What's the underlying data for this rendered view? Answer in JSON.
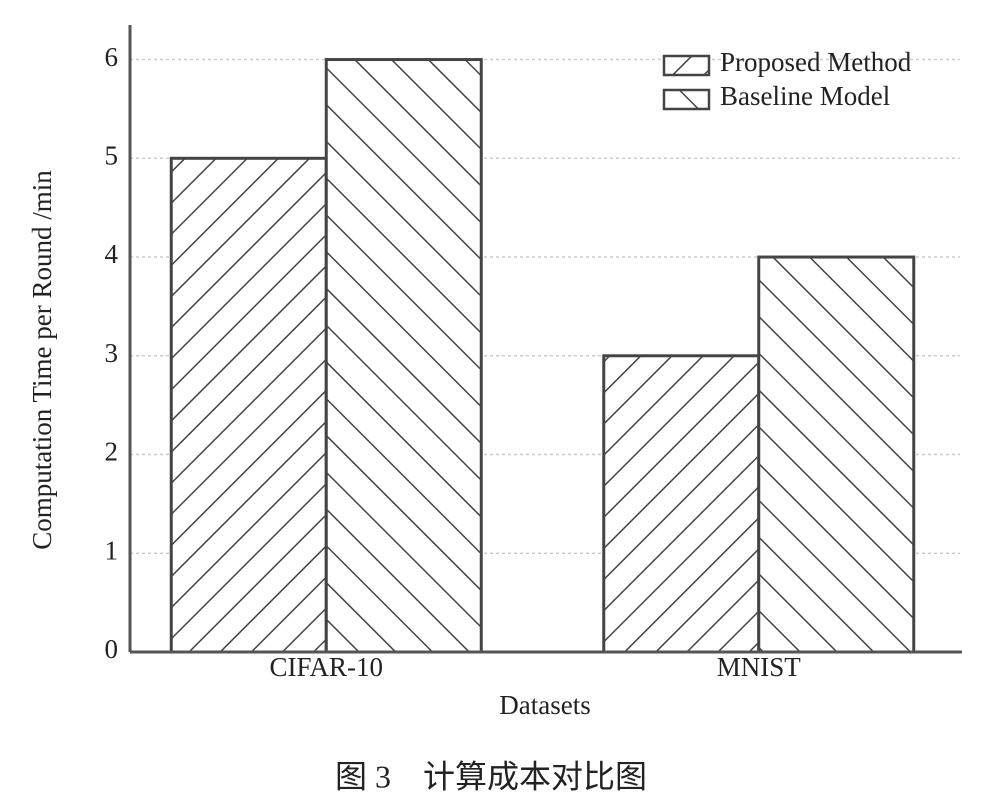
{
  "chart_data": {
    "type": "bar",
    "caption": "图 3　计算成本对比图",
    "xlabel": "Datasets",
    "ylabel": "Computation Time per Round /min",
    "categories": [
      "CIFAR-10",
      "MNIST"
    ],
    "series": [
      {
        "name": "Proposed Method",
        "color": "#444444",
        "hatch": "/",
        "values": [
          5,
          3
        ]
      },
      {
        "name": "Baseline Model",
        "color": "#444444",
        "hatch": "\\",
        "values": [
          6,
          4
        ]
      }
    ],
    "ylim": [
      0,
      6.35
    ],
    "yticks": [
      0,
      1,
      2,
      3,
      4,
      5,
      6
    ],
    "grid": true,
    "legend": "upper right"
  }
}
